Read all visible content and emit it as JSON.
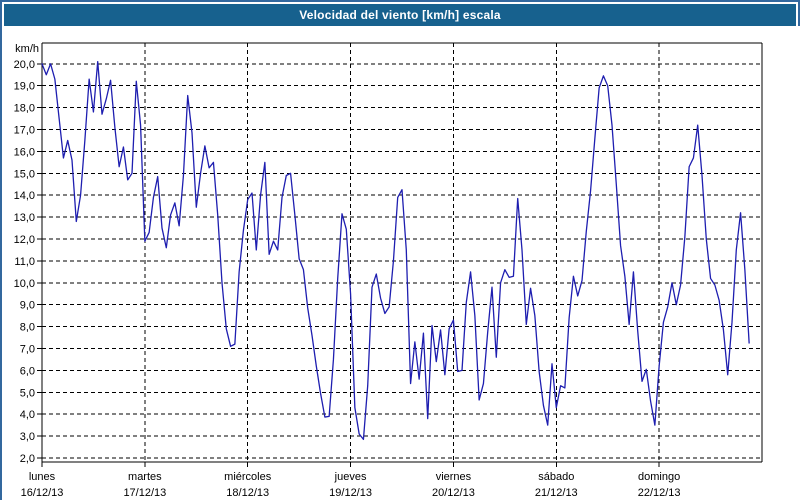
{
  "window": {
    "title": "Velocidad del viento [km/h] escala"
  },
  "colors": {
    "frame_border": "#33689E",
    "titlebar_bg": "#17618E",
    "titlebar_text": "#ffffff",
    "plot_line": "#1E1EB0",
    "grid": "#000000",
    "background": "#ffffff"
  },
  "chart_data": {
    "type": "line",
    "title": "Velocidad del viento [km/h] escala",
    "ylabel": "km/h",
    "xlabel": "",
    "grid": "dashed",
    "legend": "none",
    "ylim": [
      2,
      20.95
    ],
    "y_tick_min": 2,
    "y_tick_max": 20,
    "y_tick_step": 1,
    "points_per_day": 24,
    "days": [
      {
        "name": "lunes",
        "date": "16/12/13"
      },
      {
        "name": "martes",
        "date": "17/12/13"
      },
      {
        "name": "miércoles",
        "date": "18/12/13"
      },
      {
        "name": "jueves",
        "date": "19/12/13"
      },
      {
        "name": "viernes",
        "date": "20/12/13"
      },
      {
        "name": "sábado",
        "date": "21/12/13"
      },
      {
        "name": "domingo",
        "date": "22/12/13"
      }
    ],
    "series": [
      {
        "name": "Velocidad del viento",
        "color": "#1E1EB0",
        "values": [
          20.0,
          19.5,
          20.0,
          19.3,
          17.5,
          15.7,
          16.5,
          15.6,
          12.8,
          14.0,
          16.5,
          19.3,
          17.8,
          20.1,
          17.7,
          18.4,
          19.25,
          17.1,
          15.3,
          16.2,
          14.7,
          15.0,
          19.2,
          17.2,
          11.9,
          12.3,
          13.9,
          14.85,
          12.5,
          11.6,
          13.1,
          13.65,
          12.6,
          14.9,
          18.55,
          16.85,
          13.45,
          15.0,
          16.25,
          15.25,
          15.5,
          13.1,
          10.0,
          7.9,
          7.1,
          7.2,
          10.5,
          12.4,
          13.8,
          14.1,
          11.5,
          14.0,
          15.5,
          11.3,
          11.9,
          11.5,
          13.9,
          14.9,
          15.0,
          13.1,
          11.1,
          10.6,
          8.85,
          7.6,
          6.2,
          4.95,
          3.87,
          3.9,
          6.5,
          10.2,
          13.15,
          12.45,
          9.5,
          4.3,
          3.1,
          2.85,
          5.3,
          9.8,
          10.4,
          9.3,
          8.6,
          8.9,
          11.0,
          13.9,
          14.25,
          11.5,
          5.4,
          7.3,
          5.6,
          7.7,
          3.8,
          8.05,
          6.4,
          7.85,
          5.8,
          7.9,
          8.3,
          5.95,
          6.0,
          9.1,
          10.5,
          8.5,
          4.65,
          5.4,
          7.75,
          9.8,
          6.6,
          10.0,
          10.6,
          10.25,
          10.3,
          13.85,
          11.5,
          8.1,
          9.75,
          8.5,
          5.95,
          4.4,
          3.5,
          6.3,
          4.3,
          5.3,
          5.2,
          8.4,
          10.3,
          9.4,
          10.1,
          12.35,
          14.2,
          16.6,
          18.9,
          19.45,
          19.0,
          17.2,
          14.5,
          11.7,
          10.3,
          8.1,
          10.5,
          7.8,
          5.5,
          6.05,
          4.6,
          3.5,
          6.2,
          8.2,
          8.9,
          10.0,
          9.0,
          9.9,
          12.1,
          15.3,
          15.7,
          17.2,
          14.9,
          12.0,
          10.2,
          9.9,
          9.2,
          7.85,
          5.8,
          8.2,
          11.5,
          13.2,
          10.6,
          7.25
        ]
      }
    ]
  }
}
